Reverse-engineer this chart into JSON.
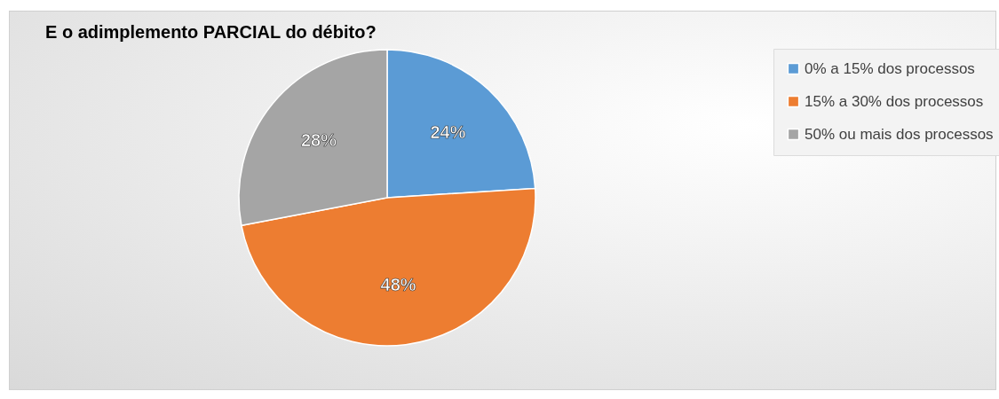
{
  "chart_data": {
    "type": "pie",
    "title": "E o adimplemento PARCIAL do débito?",
    "categories": [
      "0% a 15% dos processos",
      "15% a 30% dos processos",
      "50% ou mais dos processos"
    ],
    "values": [
      24,
      48,
      28
    ],
    "colors": [
      "#5b9bd5",
      "#ed7d31",
      "#a5a5a5"
    ],
    "value_labels": [
      "24%",
      "48%",
      "28%"
    ],
    "legend": "right"
  }
}
